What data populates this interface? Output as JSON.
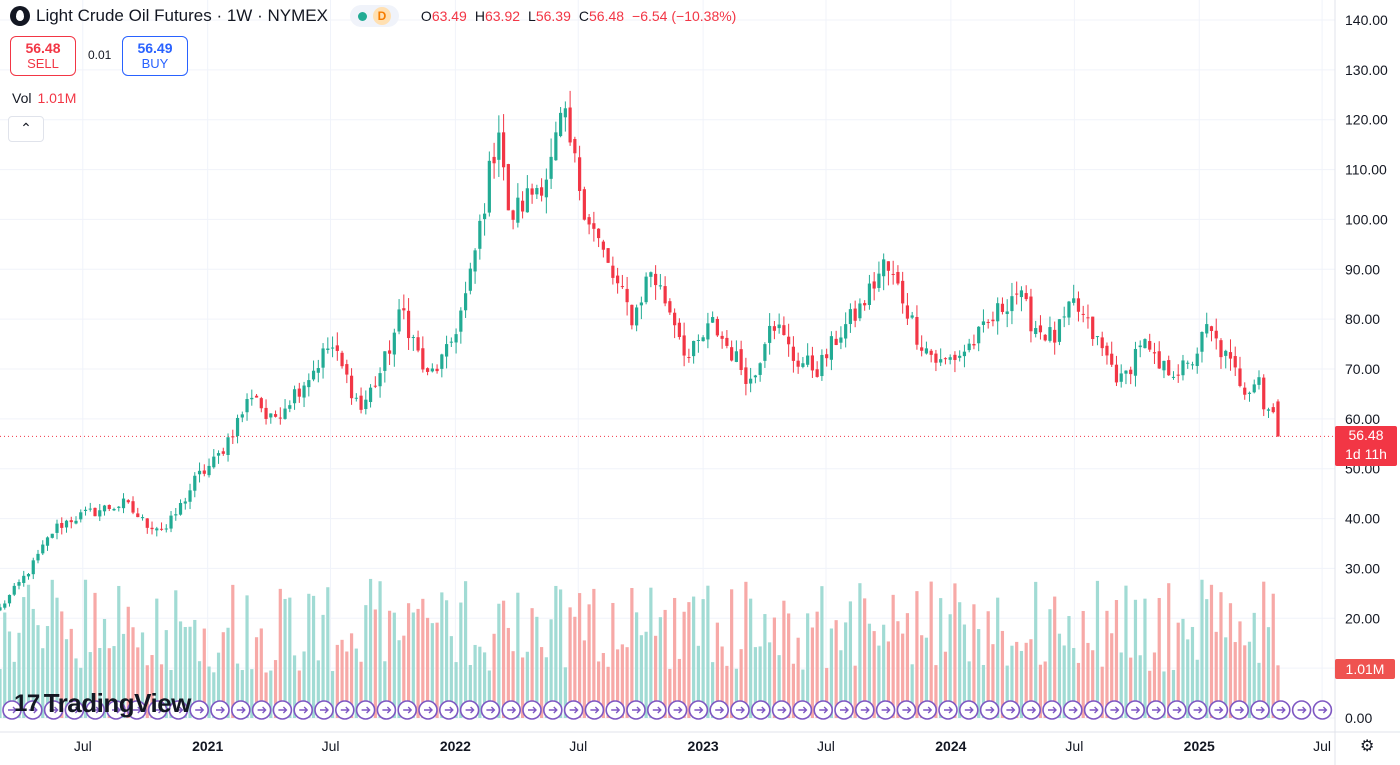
{
  "header": {
    "title": "Light Crude Oil Futures · 1W · NYMEX",
    "badge": "D",
    "ohlc": [
      {
        "k": "O",
        "v": "63.49"
      },
      {
        "k": "H",
        "v": "63.92"
      },
      {
        "k": "L",
        "v": "56.39"
      },
      {
        "k": "C",
        "v": "56.48"
      },
      {
        "k": "",
        "v": "−6.54 (−10.38%)"
      }
    ]
  },
  "trade": {
    "sell_price": "56.48",
    "sell_label": "SELL",
    "spread": "0.01",
    "buy_price": "56.49",
    "buy_label": "BUY"
  },
  "volume": {
    "label": "Vol",
    "value": "1.01M",
    "tag": "1.01M"
  },
  "price_tag": {
    "price": "56.48",
    "countdown": "1d 11h"
  },
  "logo": {
    "text": "TradingView"
  },
  "colors": {
    "up": "#22ab94",
    "down": "#f23645",
    "vol_up": "#a1dbd4",
    "vol_down": "#f7a9a7",
    "grid": "#f0f3fa"
  },
  "icons": {
    "collapse": "chevron-up-icon",
    "settings": "gear-icon",
    "symbol": "oil-drop-icon"
  },
  "chart_data": {
    "type": "candlestick",
    "title": "Light Crude Oil Futures · 1W · NYMEX",
    "ylim": [
      0,
      140
    ],
    "y_ticks": [
      "0.00",
      "10.00",
      "20.00",
      "30.00",
      "40.00",
      "50.00",
      "60.00",
      "70.00",
      "80.00",
      "90.00",
      "100.00",
      "110.00",
      "120.00",
      "130.00",
      "140.00"
    ],
    "x_ticks": [
      {
        "label": "Jul",
        "date": "2020-07-01",
        "year": false
      },
      {
        "label": "2021",
        "date": "2021-01-01",
        "year": true
      },
      {
        "label": "Jul",
        "date": "2021-07-01",
        "year": false
      },
      {
        "label": "2022",
        "date": "2022-01-01",
        "year": true
      },
      {
        "label": "Jul",
        "date": "2022-07-01",
        "year": false
      },
      {
        "label": "2023",
        "date": "2023-01-01",
        "year": true
      },
      {
        "label": "Jul",
        "date": "2023-07-01",
        "year": false
      },
      {
        "label": "2024",
        "date": "2024-01-01",
        "year": true
      },
      {
        "label": "Jul",
        "date": "2024-07-01",
        "year": false
      },
      {
        "label": "2025",
        "date": "2025-01-01",
        "year": true
      },
      {
        "label": "Jul",
        "date": "2025-07-01",
        "year": false
      }
    ],
    "x_range": [
      "2020-03-01",
      "2025-07-20"
    ],
    "last_price": 56.48,
    "weekly_close_path": [
      [
        "2020-03-01",
        22
      ],
      [
        "2020-04-15",
        30
      ],
      [
        "2020-05-20",
        38
      ],
      [
        "2020-06-15",
        40
      ],
      [
        "2020-08-01",
        42
      ],
      [
        "2020-09-01",
        43
      ],
      [
        "2020-10-01",
        39
      ],
      [
        "2020-11-01",
        38
      ],
      [
        "2020-11-20",
        42
      ],
      [
        "2020-12-15",
        48
      ],
      [
        "2021-01-15",
        52
      ],
      [
        "2021-02-20",
        61
      ],
      [
        "2021-03-10",
        66
      ],
      [
        "2021-04-01",
        59
      ],
      [
        "2021-05-01",
        64
      ],
      [
        "2021-06-01",
        69
      ],
      [
        "2021-07-01",
        75
      ],
      [
        "2021-08-15",
        62
      ],
      [
        "2021-09-15",
        70
      ],
      [
        "2021-10-15",
        82
      ],
      [
        "2021-11-20",
        68
      ],
      [
        "2021-12-20",
        73
      ],
      [
        "2022-01-20",
        86
      ],
      [
        "2022-03-07",
        120
      ],
      [
        "2022-03-20",
        100
      ],
      [
        "2022-04-15",
        104
      ],
      [
        "2022-05-20",
        110
      ],
      [
        "2022-06-08",
        121
      ],
      [
        "2022-07-10",
        103
      ],
      [
        "2022-08-15",
        90
      ],
      [
        "2022-09-20",
        80
      ],
      [
        "2022-10-15",
        90
      ],
      [
        "2022-11-20",
        80
      ],
      [
        "2022-12-10",
        72
      ],
      [
        "2023-01-15",
        79
      ],
      [
        "2023-03-15",
        67
      ],
      [
        "2023-04-10",
        81
      ],
      [
        "2023-05-15",
        72
      ],
      [
        "2023-06-20",
        70
      ],
      [
        "2023-07-20",
        77
      ],
      [
        "2023-08-20",
        82
      ],
      [
        "2023-09-25",
        91
      ],
      [
        "2023-10-20",
        85
      ],
      [
        "2023-11-15",
        76
      ],
      [
        "2023-12-15",
        71
      ],
      [
        "2024-01-15",
        73
      ],
      [
        "2024-02-15",
        77
      ],
      [
        "2024-04-05",
        86
      ],
      [
        "2024-05-01",
        79
      ],
      [
        "2024-06-01",
        76
      ],
      [
        "2024-07-01",
        83
      ],
      [
        "2024-08-01",
        76
      ],
      [
        "2024-09-10",
        67
      ],
      [
        "2024-10-07",
        76
      ],
      [
        "2024-11-01",
        70
      ],
      [
        "2024-12-15",
        70
      ],
      [
        "2025-01-13",
        78
      ],
      [
        "2025-02-10",
        72
      ],
      [
        "2025-03-10",
        66
      ],
      [
        "2025-03-30",
        69
      ],
      [
        "2025-04-07",
        61
      ],
      [
        "2025-04-20",
        63
      ],
      [
        "2025-04-27",
        56.48
      ]
    ]
  }
}
